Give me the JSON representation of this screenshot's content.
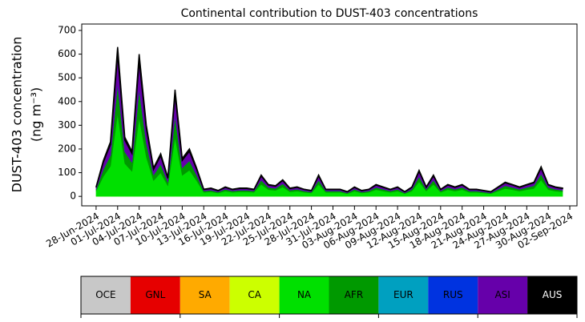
{
  "chart_data": {
    "type": "stacked_area",
    "title": "Continental contribution to DUST-403 concentrations",
    "ylabel": [
      "DUST-403 concentration",
      "(ng m⁻³)"
    ],
    "x": [
      "2024-06-28",
      "2024-06-29",
      "2024-06-30",
      "2024-07-01",
      "2024-07-02",
      "2024-07-03",
      "2024-07-04",
      "2024-07-05",
      "2024-07-06",
      "2024-07-07",
      "2024-07-08",
      "2024-07-09",
      "2024-07-10",
      "2024-07-11",
      "2024-07-12",
      "2024-07-13",
      "2024-07-14",
      "2024-07-15",
      "2024-07-16",
      "2024-07-17",
      "2024-07-18",
      "2024-07-19",
      "2024-07-20",
      "2024-07-21",
      "2024-07-22",
      "2024-07-23",
      "2024-07-24",
      "2024-07-25",
      "2024-07-26",
      "2024-07-27",
      "2024-07-28",
      "2024-07-29",
      "2024-07-30",
      "2024-07-31",
      "2024-08-01",
      "2024-08-02",
      "2024-08-03",
      "2024-08-04",
      "2024-08-05",
      "2024-08-06",
      "2024-08-07",
      "2024-08-08",
      "2024-08-09",
      "2024-08-10",
      "2024-08-11",
      "2024-08-12",
      "2024-08-13",
      "2024-08-14",
      "2024-08-15",
      "2024-08-16",
      "2024-08-17",
      "2024-08-18",
      "2024-08-19",
      "2024-08-20",
      "2024-08-21",
      "2024-08-22",
      "2024-08-23",
      "2024-08-24",
      "2024-08-25",
      "2024-08-26",
      "2024-08-27",
      "2024-08-28",
      "2024-08-29",
      "2024-08-30",
      "2024-08-31",
      "2024-09-01"
    ],
    "xlim": [
      "2024-06-26",
      "2024-09-03"
    ],
    "xticks": [
      {
        "value": "2024-06-28",
        "label": "28-Jun-2024"
      },
      {
        "value": "2024-07-01",
        "label": "01-Jul-2024"
      },
      {
        "value": "2024-07-04",
        "label": "04-Jul-2024"
      },
      {
        "value": "2024-07-07",
        "label": "07-Jul-2024"
      },
      {
        "value": "2024-07-10",
        "label": "10-Jul-2024"
      },
      {
        "value": "2024-07-13",
        "label": "13-Jul-2024"
      },
      {
        "value": "2024-07-16",
        "label": "16-Jul-2024"
      },
      {
        "value": "2024-07-19",
        "label": "19-Jul-2024"
      },
      {
        "value": "2024-07-22",
        "label": "22-Jul-2024"
      },
      {
        "value": "2024-07-25",
        "label": "25-Jul-2024"
      },
      {
        "value": "2024-07-28",
        "label": "28-Jul-2024"
      },
      {
        "value": "2024-07-31",
        "label": "31-Jul-2024"
      },
      {
        "value": "2024-08-03",
        "label": "03-Aug-2024"
      },
      {
        "value": "2024-08-06",
        "label": "06-Aug-2024"
      },
      {
        "value": "2024-08-09",
        "label": "09-Aug-2024"
      },
      {
        "value": "2024-08-12",
        "label": "12-Aug-2024"
      },
      {
        "value": "2024-08-15",
        "label": "15-Aug-2024"
      },
      {
        "value": "2024-08-18",
        "label": "18-Aug-2024"
      },
      {
        "value": "2024-08-21",
        "label": "21-Aug-2024"
      },
      {
        "value": "2024-08-24",
        "label": "24-Aug-2024"
      },
      {
        "value": "2024-08-27",
        "label": "27-Aug-2024"
      },
      {
        "value": "2024-08-30",
        "label": "30-Aug-2024"
      },
      {
        "value": "2024-09-02",
        "label": "02-Sep-2024"
      }
    ],
    "ylim": [
      -40,
      727
    ],
    "yticks": [
      0,
      100,
      200,
      300,
      400,
      500,
      600,
      700
    ],
    "series": [
      {
        "name": "OCE",
        "color": "#c8c8c8",
        "values": [
          0,
          0,
          0,
          0,
          0,
          0,
          0,
          0,
          0,
          0,
          0,
          0,
          0,
          0,
          0,
          0,
          0,
          0,
          0,
          0,
          0,
          0,
          0,
          0,
          0,
          0,
          0,
          0,
          0,
          0,
          0,
          0,
          0,
          0,
          0,
          0,
          0,
          0,
          0,
          0,
          0,
          0,
          0,
          0,
          0,
          0,
          0,
          0,
          0,
          0,
          0,
          0,
          0,
          0,
          0,
          0,
          0,
          0,
          0,
          0,
          0,
          0,
          0,
          0,
          0,
          0
        ]
      },
      {
        "name": "GNL",
        "color": "#e60000",
        "values": [
          0,
          0,
          0,
          0,
          0,
          0,
          0,
          0,
          0,
          0,
          0,
          0,
          0,
          0,
          0,
          0,
          0,
          0,
          0,
          0,
          0,
          0,
          0,
          0,
          0,
          0,
          0,
          0,
          0,
          0,
          0,
          0,
          0,
          0,
          0,
          0,
          0,
          0,
          0,
          0,
          0,
          0,
          0,
          0,
          0,
          0,
          0,
          0,
          0,
          0,
          0,
          0,
          0,
          0,
          0,
          0,
          0,
          0,
          0,
          0,
          0,
          0,
          0,
          0,
          0,
          0
        ]
      },
      {
        "name": "SA",
        "color": "#ffaa00",
        "values": [
          0,
          0,
          0,
          0,
          0,
          0,
          0,
          0,
          0,
          0,
          0,
          0,
          0,
          0,
          0,
          0,
          0,
          0,
          0,
          0,
          0,
          0,
          0,
          0,
          0,
          0,
          0,
          0,
          0,
          0,
          0,
          0,
          0,
          0,
          0,
          0,
          0,
          0,
          0,
          0,
          0,
          0,
          0,
          0,
          0,
          0,
          0,
          0,
          0,
          0,
          0,
          0,
          0,
          0,
          0,
          0,
          0,
          0,
          0,
          0,
          0,
          0,
          0,
          0,
          0,
          0
        ]
      },
      {
        "name": "CA",
        "color": "#ccff00",
        "values": [
          0,
          0,
          0,
          0,
          0,
          0,
          0,
          0,
          0,
          0,
          0,
          0,
          0,
          0,
          0,
          0,
          0,
          0,
          0,
          0,
          0,
          0,
          0,
          0,
          0,
          0,
          0,
          0,
          0,
          0,
          0,
          0,
          0,
          0,
          0,
          0,
          0,
          0,
          0,
          0,
          0,
          0,
          0,
          0,
          0,
          0,
          0,
          0,
          0,
          0,
          0,
          0,
          0,
          0,
          0,
          0,
          0,
          0,
          0,
          0,
          0,
          0,
          0,
          0,
          0,
          0
        ]
      },
      {
        "name": "NA",
        "color": "#00e000",
        "values": [
          22,
          83,
          127,
          347,
          138,
          105,
          330,
          165,
          66,
          99,
          44,
          248,
          88,
          110,
          66,
          17,
          19,
          14,
          22,
          17,
          19,
          19,
          17,
          50,
          28,
          25,
          39,
          19,
          22,
          17,
          14,
          50,
          17,
          17,
          17,
          11,
          22,
          14,
          17,
          28,
          22,
          17,
          22,
          11,
          22,
          61,
          22,
          50,
          17,
          28,
          22,
          28,
          17,
          17,
          14,
          11,
          22,
          33,
          28,
          22,
          28,
          33,
          69,
          28,
          22,
          19
        ]
      },
      {
        "name": "AFR",
        "color": "#009900",
        "values": [
          8,
          30,
          46,
          126,
          50,
          38,
          120,
          60,
          24,
          36,
          16,
          90,
          32,
          40,
          24,
          6,
          7,
          5,
          8,
          6,
          7,
          7,
          6,
          18,
          10,
          9,
          14,
          7,
          8,
          6,
          5,
          18,
          6,
          6,
          6,
          4,
          8,
          5,
          6,
          10,
          8,
          6,
          8,
          4,
          8,
          22,
          8,
          18,
          6,
          10,
          8,
          10,
          6,
          6,
          5,
          4,
          8,
          12,
          10,
          8,
          10,
          12,
          25,
          10,
          8,
          7
        ]
      },
      {
        "name": "EUR",
        "color": "#00a0c0",
        "values": [
          0,
          0,
          0,
          0,
          0,
          0,
          0,
          0,
          0,
          0,
          0,
          0,
          0,
          0,
          0,
          0,
          0,
          0,
          0,
          0,
          0,
          0,
          0,
          0,
          0,
          0,
          0,
          0,
          0,
          0,
          0,
          0,
          0,
          0,
          0,
          0,
          0,
          0,
          0,
          0,
          0,
          0,
          0,
          0,
          0,
          0,
          0,
          0,
          0,
          0,
          0,
          0,
          0,
          0,
          0,
          0,
          0,
          0,
          0,
          0,
          0,
          0,
          0,
          0,
          0,
          0
        ]
      },
      {
        "name": "RUS",
        "color": "#0033e0",
        "values": [
          0,
          0,
          0,
          0,
          0,
          0,
          0,
          0,
          0,
          0,
          0,
          0,
          0,
          0,
          0,
          0,
          0,
          0,
          0,
          0,
          0,
          0,
          0,
          0,
          0,
          0,
          0,
          0,
          0,
          0,
          0,
          0,
          0,
          0,
          0,
          0,
          0,
          0,
          0,
          0,
          0,
          0,
          0,
          0,
          0,
          0,
          0,
          0,
          0,
          0,
          0,
          0,
          0,
          0,
          0,
          0,
          0,
          0,
          0,
          0,
          0,
          0,
          0,
          0,
          0,
          0
        ]
      },
      {
        "name": "ASI",
        "color": "#6600aa",
        "values": [
          8,
          30,
          46,
          126,
          50,
          38,
          120,
          60,
          24,
          36,
          16,
          90,
          32,
          40,
          24,
          6,
          7,
          5,
          8,
          6,
          7,
          7,
          6,
          18,
          10,
          9,
          14,
          7,
          8,
          6,
          5,
          18,
          6,
          6,
          6,
          4,
          8,
          5,
          6,
          10,
          8,
          6,
          8,
          4,
          8,
          22,
          8,
          18,
          6,
          10,
          8,
          10,
          6,
          6,
          5,
          4,
          8,
          12,
          10,
          8,
          10,
          12,
          25,
          10,
          8,
          7
        ]
      },
      {
        "name": "AUS",
        "color": "#000000",
        "values": [
          2,
          7,
          11,
          31,
          12,
          9,
          30,
          15,
          6,
          9,
          4,
          22,
          8,
          10,
          6,
          1,
          2,
          1,
          2,
          1,
          2,
          2,
          1,
          4,
          2,
          2,
          3,
          2,
          2,
          1,
          1,
          4,
          1,
          1,
          1,
          1,
          2,
          1,
          1,
          2,
          2,
          1,
          2,
          1,
          2,
          5,
          2,
          4,
          1,
          2,
          2,
          2,
          1,
          1,
          1,
          1,
          2,
          3,
          2,
          2,
          2,
          3,
          6,
          2,
          2,
          2
        ]
      }
    ]
  }
}
